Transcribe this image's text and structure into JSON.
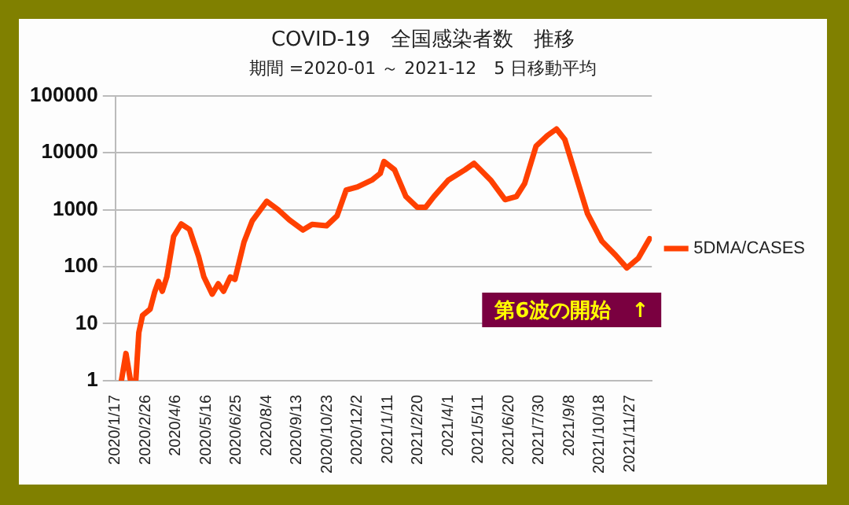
{
  "chart_data": {
    "type": "line",
    "title": "COVID-19　全国感染者数　推移",
    "subtitle": "期間 =2020-01 ～ 2021-12　5 日移動平均",
    "x": [
      "2020-01-25",
      "2020-01-31",
      "2020-02-06",
      "2020-02-13",
      "2020-02-17",
      "2020-02-22",
      "2020-03-03",
      "2020-03-09",
      "2020-03-14",
      "2020-03-19",
      "2020-03-25",
      "2020-04-03",
      "2020-04-13",
      "2020-04-24",
      "2020-05-06",
      "2020-05-13",
      "2020-05-24",
      "2020-06-01",
      "2020-06-08",
      "2020-06-17",
      "2020-06-23",
      "2020-07-05",
      "2020-07-16",
      "2020-08-04",
      "2020-08-19",
      "2020-09-03",
      "2020-09-21",
      "2020-10-03",
      "2020-10-22",
      "2020-11-05",
      "2020-11-17",
      "2020-12-02",
      "2020-12-21",
      "2021-01-01",
      "2021-01-06",
      "2021-01-20",
      "2021-02-04",
      "2021-02-19",
      "2021-03-02",
      "2021-03-13",
      "2021-04-01",
      "2021-04-23",
      "2021-05-05",
      "2021-05-27",
      "2021-06-15",
      "2021-06-30",
      "2021-07-11",
      "2021-07-26",
      "2021-08-10",
      "2021-08-22",
      "2021-09-02",
      "2021-09-17",
      "2021-10-02",
      "2021-10-21",
      "2021-11-08",
      "2021-11-23",
      "2021-12-08",
      "2021-12-23"
    ],
    "series": [
      {
        "name": "5DMA/CASES",
        "color": "#ff4000",
        "values": [
          1,
          3,
          1,
          1,
          7,
          14,
          18,
          36,
          55,
          37,
          66,
          340,
          560,
          450,
          150,
          66,
          33,
          50,
          37,
          66,
          60,
          270,
          640,
          1400,
          1000,
          660,
          440,
          550,
          520,
          780,
          2200,
          2500,
          3300,
          4300,
          7000,
          5000,
          1700,
          1100,
          1100,
          1700,
          3300,
          5000,
          6500,
          3300,
          1500,
          1700,
          2900,
          13000,
          20000,
          26000,
          17000,
          3800,
          850,
          280,
          160,
          95,
          140,
          310
        ]
      }
    ],
    "log": "y",
    "ylim": [
      1,
      100000
    ],
    "yticks": [
      1,
      10,
      100,
      1000,
      10000,
      100000
    ],
    "xlim": [
      "2020-01-17",
      "2021-12-26"
    ],
    "xticks": [
      {
        "value": "2020-01-17",
        "label": "2020/1/17"
      },
      {
        "value": "2020-02-26",
        "label": "2020/2/26"
      },
      {
        "value": "2020-04-06",
        "label": "2020/4/6"
      },
      {
        "value": "2020-05-16",
        "label": "2020/5/16"
      },
      {
        "value": "2020-06-25",
        "label": "2020/6/25"
      },
      {
        "value": "2020-08-04",
        "label": "2020/8/4"
      },
      {
        "value": "2020-09-13",
        "label": "2020/9/13"
      },
      {
        "value": "2020-10-23",
        "label": "2020/10/23"
      },
      {
        "value": "2020-12-02",
        "label": "2020/12/2"
      },
      {
        "value": "2021-01-11",
        "label": "2021/1/11"
      },
      {
        "value": "2021-02-20",
        "label": "2021/2/20"
      },
      {
        "value": "2021-04-01",
        "label": "2021/4/1"
      },
      {
        "value": "2021-05-11",
        "label": "2021/5/11"
      },
      {
        "value": "2021-06-20",
        "label": "2021/6/20"
      },
      {
        "value": "2021-07-30",
        "label": "2021/7/30"
      },
      {
        "value": "2021-09-08",
        "label": "2021/9/8"
      },
      {
        "value": "2021-10-18",
        "label": "2021/10/18"
      },
      {
        "value": "2021-11-27",
        "label": "2021/11/27"
      }
    ],
    "grid": "y",
    "legend": "right",
    "marker": "none",
    "line_style": "solid",
    "annotations": [
      "第6波の開始　↑"
    ]
  }
}
